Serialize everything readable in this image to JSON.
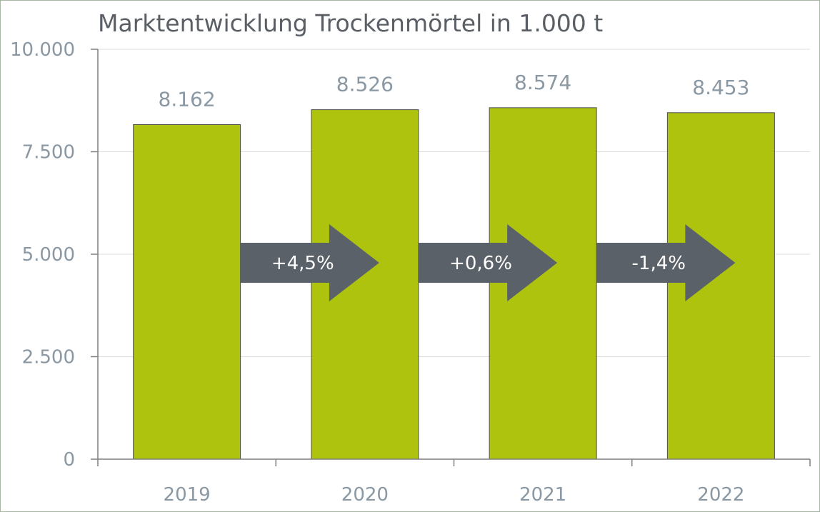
{
  "chart_data": {
    "type": "bar",
    "title": "Marktentwicklung Trockenmörtel in 1.000 t",
    "categories": [
      "2019",
      "2020",
      "2021",
      "2022"
    ],
    "values": [
      8162,
      8526,
      8574,
      8453
    ],
    "value_labels": [
      "8.162",
      "8.526",
      "8.574",
      "8.453"
    ],
    "ylim": [
      0,
      10000
    ],
    "yticks": [
      0,
      2500,
      5000,
      7500,
      10000
    ],
    "ytick_labels": [
      "0",
      "2.500",
      "5.000",
      "7.500",
      "10.000"
    ],
    "grid": true,
    "changes": [
      "+4,5%",
      "+0,6%",
      "-1,4%"
    ],
    "colors": {
      "bar": "#aec30e",
      "arrow": "#5b6169"
    }
  }
}
